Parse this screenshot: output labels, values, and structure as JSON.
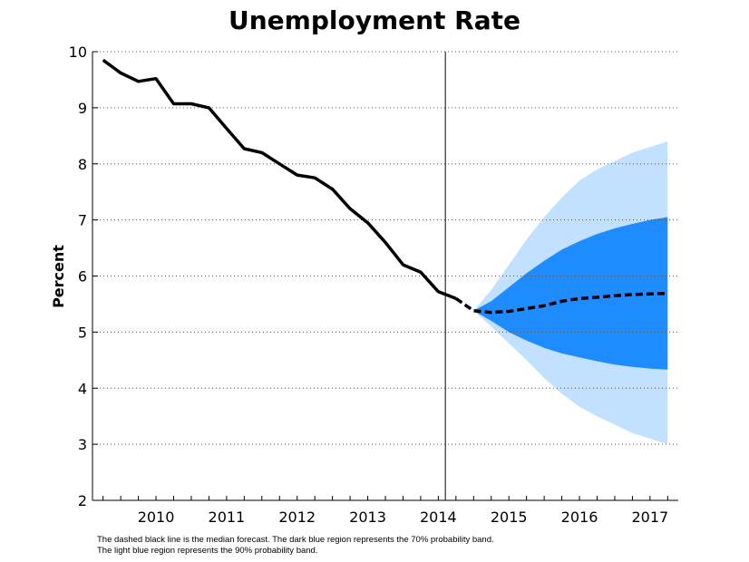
{
  "chart_data": {
    "type": "line",
    "title": "Unemployment Rate",
    "ylabel": "Percent",
    "xlabel": "",
    "ylim": [
      2,
      10
    ],
    "xlim": [
      2009.6,
      2017.9
    ],
    "yticks": [
      2,
      3,
      4,
      5,
      6,
      7,
      8,
      9,
      10
    ],
    "xtick_labels": [
      "2010",
      "2011",
      "2012",
      "2013",
      "2014",
      "2015",
      "2016",
      "2017"
    ],
    "grid": "horizontal dotted",
    "forecast_start": 2014.6,
    "series": [
      {
        "style": "solid",
        "x": [
          2009.75,
          2010.0,
          2010.25,
          2010.5,
          2010.75,
          2011.0,
          2011.25,
          2011.5,
          2011.75,
          2012.0,
          2012.25,
          2012.5,
          2012.75,
          2013.0,
          2013.25,
          2013.5,
          2013.75,
          2014.0,
          2014.25,
          2014.5,
          2014.75
        ],
        "values": [
          9.85,
          9.62,
          9.47,
          9.52,
          9.07,
          9.07,
          9.0,
          8.63,
          8.27,
          8.2,
          8.0,
          7.8,
          7.75,
          7.55,
          7.2,
          6.95,
          6.6,
          6.2,
          6.07,
          5.72,
          5.6
        ]
      },
      {
        "style": "dashed",
        "x": [
          2014.75,
          2015.0,
          2015.25,
          2015.5,
          2015.75,
          2016.0,
          2016.25,
          2016.5,
          2016.75,
          2017.0,
          2017.25,
          2017.5,
          2017.75
        ],
        "values": [
          5.6,
          5.38,
          5.35,
          5.37,
          5.42,
          5.47,
          5.55,
          5.6,
          5.62,
          5.65,
          5.67,
          5.68,
          5.69
        ]
      }
    ],
    "bands": [
      {
        "probability": "90%",
        "color": "#c2e0ff",
        "x": [
          2015.0,
          2015.25,
          2015.5,
          2015.75,
          2016.0,
          2016.25,
          2016.5,
          2016.75,
          2017.0,
          2017.25,
          2017.5,
          2017.75
        ],
        "lower": [
          5.38,
          5.1,
          4.8,
          4.5,
          4.18,
          3.9,
          3.67,
          3.5,
          3.35,
          3.2,
          3.1,
          3.0
        ],
        "upper": [
          5.38,
          5.75,
          6.2,
          6.65,
          7.05,
          7.4,
          7.7,
          7.9,
          8.05,
          8.2,
          8.3,
          8.4
        ]
      },
      {
        "probability": "70%",
        "color": "#1e8cff",
        "x": [
          2015.0,
          2015.25,
          2015.5,
          2015.75,
          2016.0,
          2016.25,
          2016.5,
          2016.75,
          2017.0,
          2017.25,
          2017.5,
          2017.75
        ],
        "lower": [
          5.38,
          5.2,
          5.0,
          4.85,
          4.72,
          4.62,
          4.55,
          4.48,
          4.42,
          4.38,
          4.35,
          4.33
        ],
        "upper": [
          5.38,
          5.55,
          5.8,
          6.05,
          6.27,
          6.47,
          6.62,
          6.75,
          6.85,
          6.93,
          7.0,
          7.05
        ]
      }
    ],
    "notes": [
      "The dashed black line is the median forecast. The dark blue region represents the 70% probability band.",
      "The light blue region represents the 90% probability band."
    ]
  }
}
